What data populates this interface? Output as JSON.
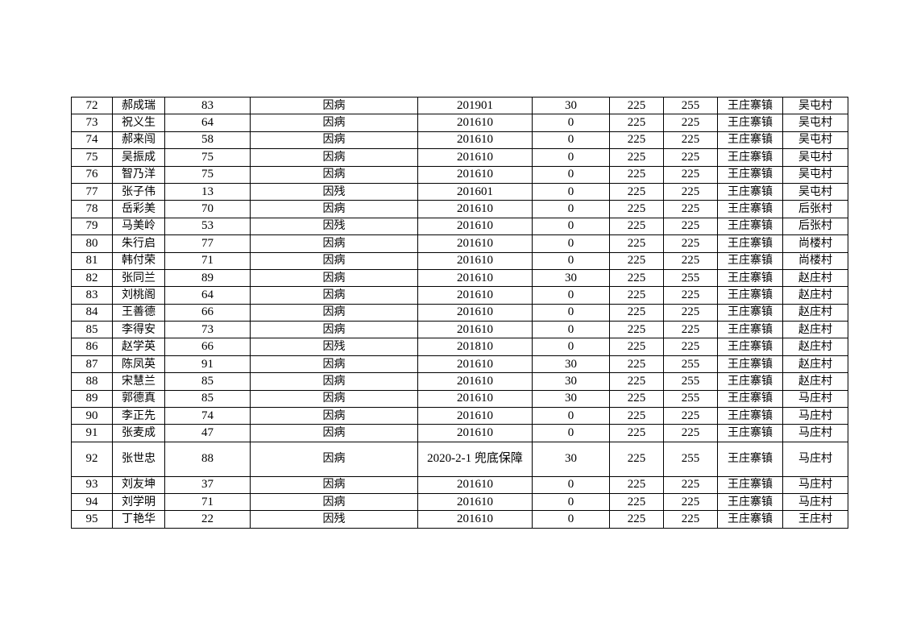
{
  "table": {
    "rows": [
      [
        "72",
        "郝成瑞",
        "83",
        "因病",
        "201901",
        "30",
        "225",
        "255",
        "王庄寨镇",
        "吴屯村"
      ],
      [
        "73",
        "祝义生",
        "64",
        "因病",
        "201610",
        "0",
        "225",
        "225",
        "王庄寨镇",
        "吴屯村"
      ],
      [
        "74",
        "郝来闯",
        "58",
        "因病",
        "201610",
        "0",
        "225",
        "225",
        "王庄寨镇",
        "吴屯村"
      ],
      [
        "75",
        "吴振成",
        "75",
        "因病",
        "201610",
        "0",
        "225",
        "225",
        "王庄寨镇",
        "吴屯村"
      ],
      [
        "76",
        "智乃洋",
        "75",
        "因病",
        "201610",
        "0",
        "225",
        "225",
        "王庄寨镇",
        "吴屯村"
      ],
      [
        "77",
        "张子伟",
        "13",
        "因残",
        "201601",
        "0",
        "225",
        "225",
        "王庄寨镇",
        "吴屯村"
      ],
      [
        "78",
        "岳彩美",
        "70",
        "因病",
        "201610",
        "0",
        "225",
        "225",
        "王庄寨镇",
        "后张村"
      ],
      [
        "79",
        "马美岭",
        "53",
        "因残",
        "201610",
        "0",
        "225",
        "225",
        "王庄寨镇",
        "后张村"
      ],
      [
        "80",
        "朱行启",
        "77",
        "因病",
        "201610",
        "0",
        "225",
        "225",
        "王庄寨镇",
        "尚楼村"
      ],
      [
        "81",
        "韩付荣",
        "71",
        "因病",
        "201610",
        "0",
        "225",
        "225",
        "王庄寨镇",
        "尚楼村"
      ],
      [
        "82",
        "张同兰",
        "89",
        "因病",
        "201610",
        "30",
        "225",
        "255",
        "王庄寨镇",
        "赵庄村"
      ],
      [
        "83",
        "刘桃阁",
        "64",
        "因病",
        "201610",
        "0",
        "225",
        "225",
        "王庄寨镇",
        "赵庄村"
      ],
      [
        "84",
        "王善德",
        "66",
        "因病",
        "201610",
        "0",
        "225",
        "225",
        "王庄寨镇",
        "赵庄村"
      ],
      [
        "85",
        "李得安",
        "73",
        "因病",
        "201610",
        "0",
        "225",
        "225",
        "王庄寨镇",
        "赵庄村"
      ],
      [
        "86",
        "赵学英",
        "66",
        "因残",
        "201810",
        "0",
        "225",
        "225",
        "王庄寨镇",
        "赵庄村"
      ],
      [
        "87",
        "陈凤英",
        "91",
        "因病",
        "201610",
        "30",
        "225",
        "255",
        "王庄寨镇",
        "赵庄村"
      ],
      [
        "88",
        "宋慧兰",
        "85",
        "因病",
        "201610",
        "30",
        "225",
        "255",
        "王庄寨镇",
        "赵庄村"
      ],
      [
        "89",
        "郭德真",
        "85",
        "因病",
        "201610",
        "30",
        "225",
        "255",
        "王庄寨镇",
        "马庄村"
      ],
      [
        "90",
        "李正先",
        "74",
        "因病",
        "201610",
        "0",
        "225",
        "225",
        "王庄寨镇",
        "马庄村"
      ],
      [
        "91",
        "张麦成",
        "47",
        "因病",
        "201610",
        "0",
        "225",
        "225",
        "王庄寨镇",
        "马庄村"
      ],
      [
        "92",
        "张世忠",
        "88",
        "因病",
        "2020-2-1 兜底保障",
        "30",
        "225",
        "255",
        "王庄寨镇",
        "马庄村"
      ],
      [
        "93",
        "刘友坤",
        "37",
        "因病",
        "201610",
        "0",
        "225",
        "225",
        "王庄寨镇",
        "马庄村"
      ],
      [
        "94",
        "刘学明",
        "71",
        "因病",
        "201610",
        "0",
        "225",
        "225",
        "王庄寨镇",
        "马庄村"
      ],
      [
        "95",
        "丁艳华",
        "22",
        "因残",
        "201610",
        "0",
        "225",
        "225",
        "王庄寨镇",
        "王庄村"
      ]
    ]
  }
}
